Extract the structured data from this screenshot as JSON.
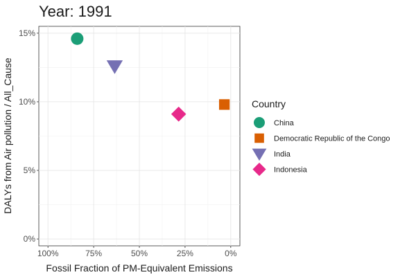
{
  "chart_data": {
    "type": "scatter",
    "title": "Year: 1991",
    "xlabel": "Fossil Fraction of PM-Equivalent Emissions",
    "ylabel": "DALYs from Air pollution / All_Cause",
    "x_reversed": true,
    "xlim": [
      1.05,
      -0.05
    ],
    "ylim": [
      -0.005,
      0.155
    ],
    "x_ticks": [
      1.0,
      0.75,
      0.5,
      0.25,
      0.0
    ],
    "x_tick_labels": [
      "100%",
      "75%",
      "50%",
      "25%",
      "0%"
    ],
    "y_ticks": [
      0.0,
      0.05,
      0.1,
      0.15
    ],
    "y_tick_labels": [
      "0%",
      "5%",
      "10%",
      "15%"
    ],
    "grid": true,
    "legend": {
      "title": "Country",
      "placement": "right"
    },
    "series": [
      {
        "name": "China",
        "shape": "circle",
        "color": "#1B9E77",
        "x": 0.84,
        "y": 0.146
      },
      {
        "name": "Democratic Republic of the Congo",
        "shape": "square",
        "color": "#D95F02",
        "x": 0.035,
        "y": 0.098
      },
      {
        "name": "India",
        "shape": "triangle-down",
        "color": "#7570B3",
        "x": 0.635,
        "y": 0.126
      },
      {
        "name": "Indonesia",
        "shape": "diamond",
        "color": "#E7298A",
        "x": 0.285,
        "y": 0.091
      }
    ]
  }
}
